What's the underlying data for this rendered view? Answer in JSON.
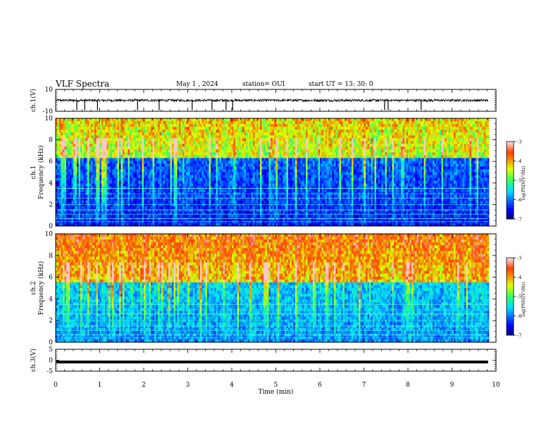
{
  "header": {
    "title": "VLF Spectra",
    "date": "May 1  , 2024",
    "station": "station= OUI",
    "start_ut": "start  UT  =   13: 30: 0"
  },
  "chart_data": [
    {
      "type": "line",
      "ylabel": "ch.1(V)",
      "ylim": [
        -10,
        10
      ],
      "yticks": [
        "10",
        "-10"
      ],
      "xlim": [
        0,
        10
      ],
      "baseline": 0,
      "noise_amplitude": 1,
      "spikes_x": [
        0.48,
        0.66,
        0.95,
        1.86,
        2.35,
        3.1,
        3.55,
        3.87,
        4.02,
        7.47,
        7.55,
        8.3
      ],
      "color": "#000000"
    },
    {
      "type": "heatmap",
      "ylabel": "ch.1\nFrequency (kHz)",
      "ylim": [
        0,
        10
      ],
      "yticks": [
        "0",
        "2",
        "4",
        "6",
        "8",
        "10"
      ],
      "xlim": [
        0,
        10
      ],
      "colorbar": {
        "label": "log(PSD)(V²/Hz)",
        "ticks": [
          "-3",
          "-4",
          "-5",
          "-6",
          "-7"
        ],
        "range": [
          -7,
          -3
        ]
      },
      "data_end_min": 9.82,
      "description_levels": {
        "high_freq_psd": -4.2,
        "low_freq_psd": -6.4,
        "transition_khz": 6.2
      }
    },
    {
      "type": "heatmap",
      "ylabel": "ch.2\nFrequency (kHz)",
      "ylim": [
        0,
        10
      ],
      "yticks": [
        "0",
        "2",
        "4",
        "6",
        "8",
        "10"
      ],
      "xlim": [
        0,
        10
      ],
      "colorbar": {
        "label": "log(PSD)(V²/Hz)",
        "ticks": [
          "-3",
          "-4",
          "-5",
          "-6",
          "-7"
        ],
        "range": [
          -7,
          -3
        ]
      },
      "data_end_min": 9.82,
      "description_levels": {
        "high_freq_psd": -3.7,
        "low_freq_psd": -5.9,
        "transition_khz": 5.5
      }
    },
    {
      "type": "line",
      "ylabel": "ch.3(V)",
      "ylim": [
        -5,
        5
      ],
      "yticks": [
        "5",
        "0",
        "-5"
      ],
      "xlim": [
        0,
        10
      ],
      "xlabel": "Time (min)",
      "xticks": [
        "0",
        "1",
        "2",
        "3",
        "4",
        "5",
        "6",
        "7",
        "8",
        "9",
        "10"
      ],
      "baseline": -0.8,
      "color": "#000000"
    }
  ],
  "colors": {
    "axis": "#000000",
    "trace": "#000000"
  }
}
